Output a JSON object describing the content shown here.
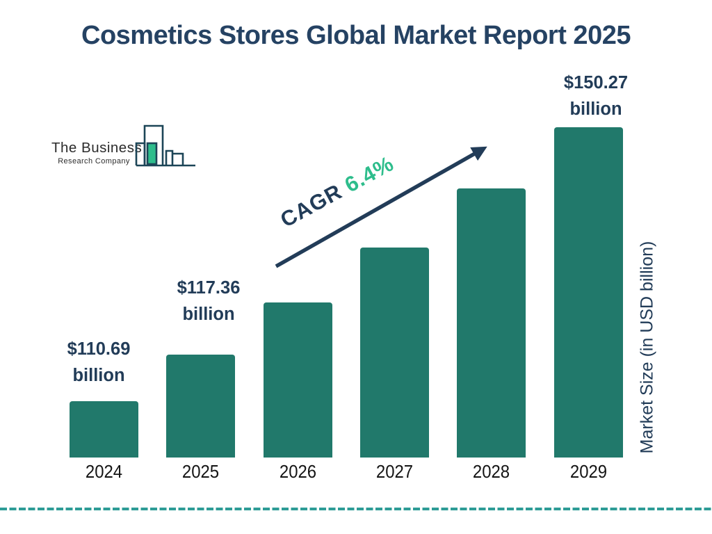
{
  "title": "Cosmetics Stores Global Market Report 2025",
  "logo": {
    "line1": "The Business",
    "line2": "Research Company"
  },
  "chart_data": {
    "type": "bar",
    "title": "Cosmetics Stores Global Market Report 2025",
    "categories": [
      "2024",
      "2025",
      "2026",
      "2027",
      "2028",
      "2029"
    ],
    "values": [
      110.69,
      117.36,
      124.9,
      132.9,
      141.4,
      150.27
    ],
    "unit": "USD billion",
    "ylabel": "Market Size (in USD billion)",
    "xlabel": "",
    "legend": false,
    "gridlines": false,
    "axis_scale_visible": false,
    "cagr": {
      "label": "CAGR",
      "value": "6.4%"
    },
    "annotations": [
      {
        "bar": "2024",
        "amount": "$110.69",
        "unit": "billion"
      },
      {
        "bar": "2025",
        "amount": "$117.36",
        "unit": "billion"
      },
      {
        "bar": "2029",
        "amount": "$150.27",
        "unit": "billion"
      }
    ],
    "colors": {
      "bar": "#21796B",
      "navy_text": "#223C58",
      "title_navy": "#254263",
      "cagr_green": "#2EBD8C",
      "dashed_rule_teal": "#2E9C96",
      "logo_outline": "#1C4557",
      "logo_green_bar": "#2EBD8C"
    }
  }
}
